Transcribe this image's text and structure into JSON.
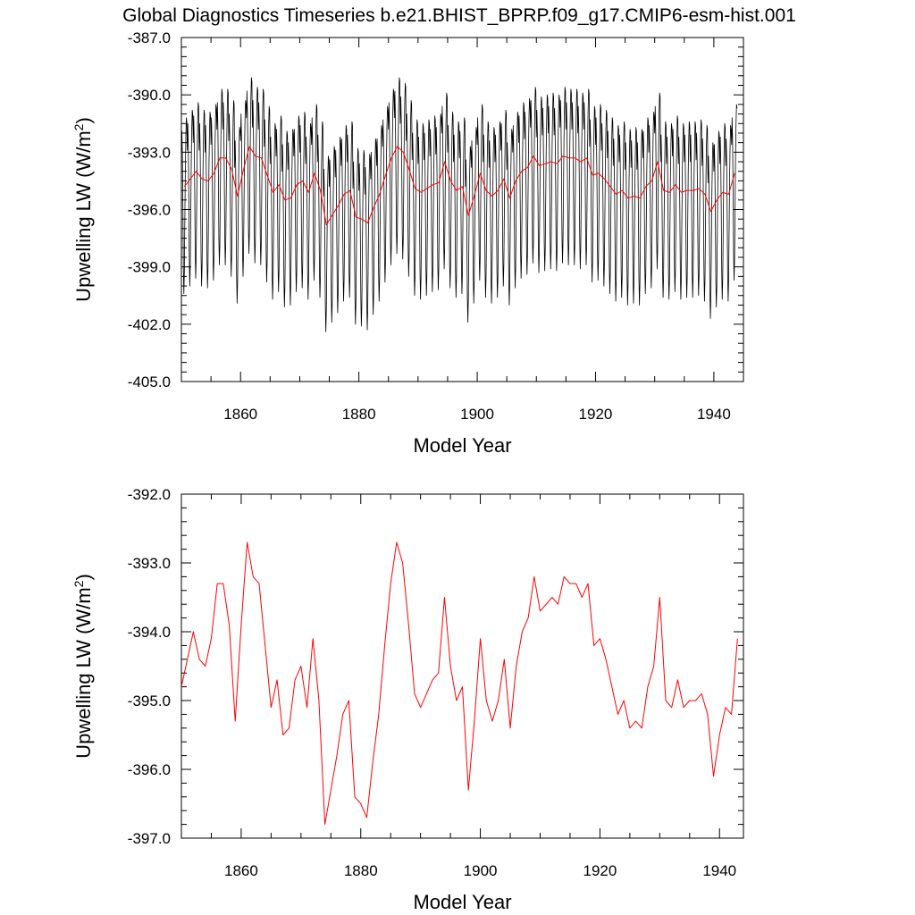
{
  "title": "Global Diagnostics Timeseries b.e21.BHIST_BPRP.f09_g17.CMIP6-esm-hist.001",
  "chart_data": [
    {
      "type": "line",
      "xlabel": "Model Year",
      "ylabel_main": "Upwelling LW (W/m",
      "ylabel_sup": "2",
      "ylabel_close": ")",
      "xlim": [
        1850,
        1945
      ],
      "ylim": [
        -405.0,
        -387.0
      ],
      "xticks": [
        1860,
        1880,
        1900,
        1920,
        1940
      ],
      "yticks": [
        -387.0,
        -390.0,
        -393.0,
        -396.0,
        -399.0,
        -402.0,
        -405.0
      ],
      "ytick_labels": [
        "-387.0",
        "-390.0",
        "-393.0",
        "-396.0",
        "-399.0",
        "-402.0",
        "-405.0"
      ],
      "grid": false,
      "series": [
        {
          "style": "monthly",
          "color": "#000000",
          "x_start": 1850.0,
          "x_step": 0.0833333,
          "values_ref": "monthly"
        },
        {
          "style": "annual",
          "color": "#ff0000",
          "x_start": 1850.5,
          "x_step": 1,
          "values_ref": "annual"
        }
      ]
    },
    {
      "type": "line",
      "xlabel": "Model Year",
      "ylabel_main": "Upwelling LW (W/m",
      "ylabel_sup": "2",
      "ylabel_close": ")",
      "xlim": [
        1850,
        1944
      ],
      "ylim": [
        -397.0,
        -392.0
      ],
      "xticks": [
        1860,
        1880,
        1900,
        1920,
        1940
      ],
      "yticks": [
        -392.0,
        -393.0,
        -394.0,
        -395.0,
        -396.0,
        -397.0
      ],
      "ytick_labels": [
        "-392.0",
        "-393.0",
        "-394.0",
        "-395.0",
        "-396.0",
        "-397.0"
      ],
      "grid": false,
      "series": [
        {
          "style": "annual",
          "color": "#ff0000",
          "x_start": 1850.0,
          "x_step": 1,
          "values_ref": "annual"
        }
      ]
    }
  ],
  "annual": [
    -394.8,
    -394.4,
    -394.0,
    -394.4,
    -394.5,
    -394.1,
    -393.3,
    -393.3,
    -393.9,
    -395.3,
    -393.9,
    -392.7,
    -393.2,
    -393.3,
    -394.2,
    -395.1,
    -394.7,
    -395.5,
    -395.4,
    -394.7,
    -394.5,
    -395.1,
    -394.1,
    -395.0,
    -396.8,
    -396.3,
    -395.8,
    -395.2,
    -395.0,
    -396.4,
    -396.5,
    -396.7,
    -395.9,
    -395.2,
    -394.2,
    -393.3,
    -392.7,
    -393.0,
    -393.9,
    -394.9,
    -395.1,
    -394.9,
    -394.7,
    -394.6,
    -393.5,
    -394.5,
    -395.0,
    -394.8,
    -396.3,
    -395.3,
    -394.1,
    -395.0,
    -395.3,
    -395.0,
    -394.4,
    -395.4,
    -394.5,
    -394.0,
    -393.8,
    -393.2,
    -393.7,
    -393.6,
    -393.5,
    -393.6,
    -393.2,
    -393.3,
    -393.3,
    -393.5,
    -393.3,
    -394.2,
    -394.1,
    -394.4,
    -394.8,
    -395.2,
    -395.0,
    -395.4,
    -395.3,
    -395.4,
    -394.8,
    -394.5,
    -393.5,
    -395.0,
    -395.1,
    -394.7,
    -395.1,
    -395.0,
    -395.0,
    -394.9,
    -395.2,
    -396.1,
    -395.5,
    -395.1,
    -395.2,
    -394.1
  ],
  "monthly_shape": [
    1.5,
    2.9,
    1.7,
    -0.9,
    -4.2,
    -5.6,
    -4.5,
    -1.8,
    0.9,
    2.6,
    3.6,
    3.4
  ]
}
